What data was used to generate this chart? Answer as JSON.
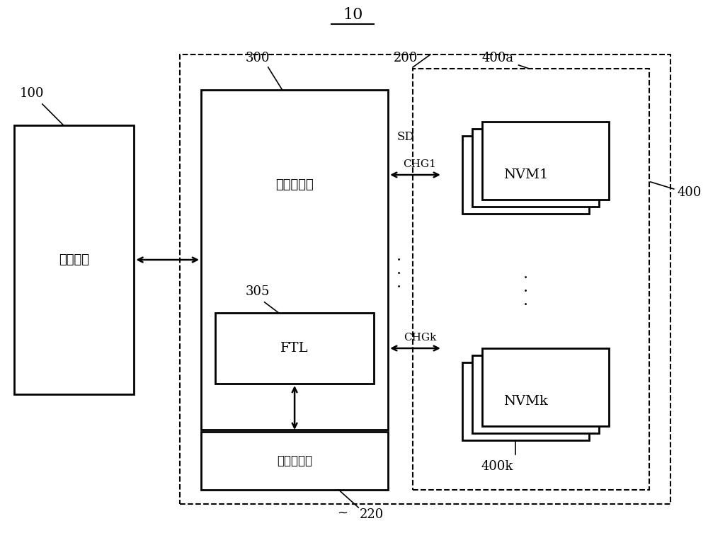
{
  "title": "10",
  "bg_color": "#ffffff",
  "text_color": "#000000",
  "label_100": "100",
  "label_300": "300",
  "label_200": "200",
  "label_400a": "400a",
  "label_400": "400",
  "label_305": "305",
  "label_220": "220",
  "label_400k": "400k",
  "host_label": "主机设备",
  "controller_label": "存储控制器",
  "ftl_label": "FTL",
  "buffer_label": "缓冲存储器",
  "nvm1_label": "NVM1",
  "nvmk_label": "NVMk",
  "sd_label": "SD",
  "chg1_label": "CHG1",
  "chgk_label": "CHGk",
  "dots": "·\n·\n·"
}
